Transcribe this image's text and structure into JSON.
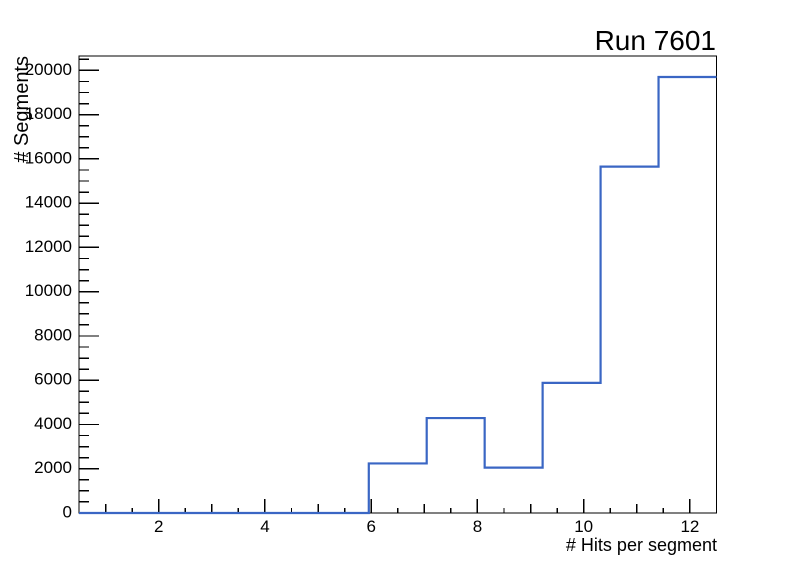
{
  "chart_data": {
    "type": "histogram-step",
    "title": "Run 7601",
    "xlabel": "# Hits per segment",
    "ylabel": "# Segments",
    "xlim": [
      0.5,
      12.5
    ],
    "ylim": [
      0,
      20650
    ],
    "n_bins": 11,
    "bin_edges": [
      0.5,
      1.591,
      2.682,
      3.773,
      4.864,
      5.955,
      7.045,
      8.136,
      9.227,
      10.318,
      11.409,
      12.5
    ],
    "values": [
      0,
      0,
      0,
      0,
      0,
      2240,
      4290,
      2050,
      5880,
      15650,
      19700
    ],
    "x_major_ticks": [
      2,
      4,
      6,
      8,
      10,
      12
    ],
    "x_major_tick_labels": [
      "2",
      "4",
      "6",
      "8",
      "10",
      "12"
    ],
    "x_medium_ticks": [
      1,
      3,
      5,
      7,
      9,
      11
    ],
    "x_minor_ticks": [
      1.5,
      2.5,
      3.5,
      4.5,
      5.5,
      6.5,
      7.5,
      8.5,
      9.5,
      10.5,
      11.5
    ],
    "y_major_ticks": [
      0,
      2000,
      4000,
      6000,
      8000,
      10000,
      12000,
      14000,
      16000,
      18000,
      20000
    ],
    "y_major_tick_labels": [
      "0",
      "2000",
      "4000",
      "6000",
      "8000",
      "10000",
      "12000",
      "14000",
      "16000",
      "18000",
      "20000"
    ],
    "y_minor_tick_step": 500,
    "grid": false,
    "legend": false,
    "line_color": "#3a66c4",
    "axis_color": "#000000",
    "background_color": "#ffffff"
  }
}
